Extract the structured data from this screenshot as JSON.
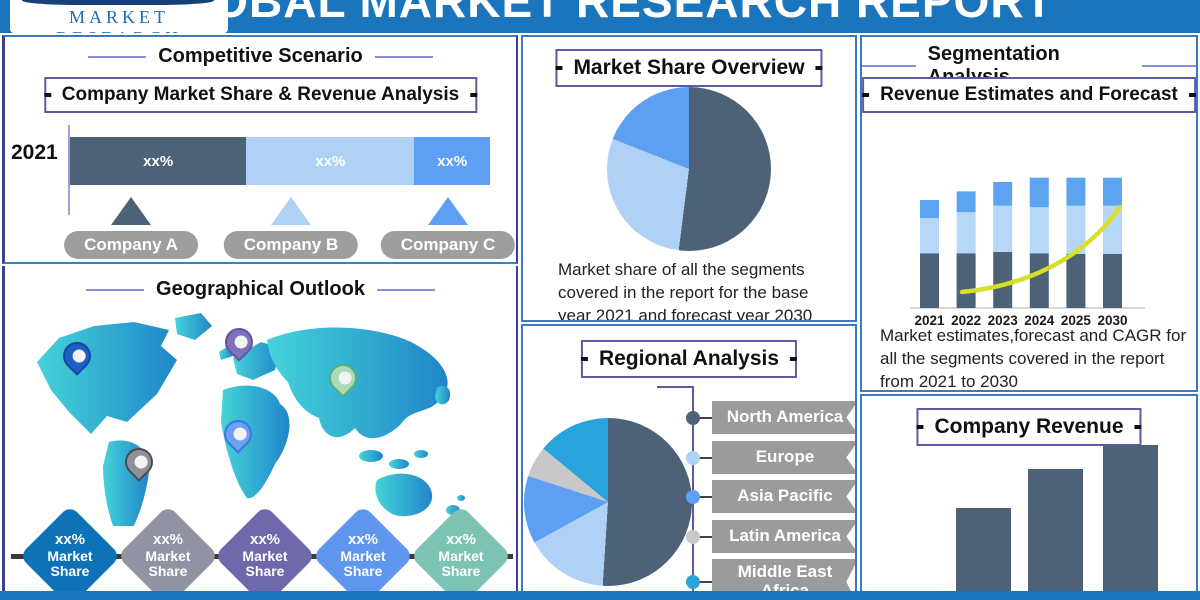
{
  "header": {
    "logo_text": "MARKET RESEARCH",
    "title": "GLOBAL MARKET RESEARCH REPORT"
  },
  "competitive": {
    "title": "Competitive Scenario",
    "subtitle": "Company Market Share & Revenue Analysis",
    "year_label": "2021",
    "companies": [
      {
        "label": "Company A",
        "color": "#4d6277"
      },
      {
        "label": "Company B",
        "color": "#aed1f5"
      },
      {
        "label": "Company C",
        "color": "#5d9ff3"
      }
    ]
  },
  "geographical": {
    "title": "Geographical Outlook",
    "badges": [
      {
        "pct": "xx%",
        "label": "Market Share",
        "color": "#0d72b8"
      },
      {
        "pct": "xx%",
        "label": "Market Share",
        "color": "#8f93a2"
      },
      {
        "pct": "xx%",
        "label": "Market Share",
        "color": "#6f68ab"
      },
      {
        "pct": "xx%",
        "label": "Market Share",
        "color": "#5f96ee"
      },
      {
        "pct": "xx%",
        "label": "Market Share",
        "color": "#7cc3b4"
      }
    ],
    "pins": [
      {
        "name": "north-america",
        "fill": "#1d5fc4",
        "stroke": "#15459c"
      },
      {
        "name": "europe",
        "fill": "#8071bd",
        "stroke": "#64549f"
      },
      {
        "name": "middle-east-africa",
        "fill": "#6d9ff2",
        "stroke": "#3f78dd"
      },
      {
        "name": "east-asia",
        "fill": "#aadbb9",
        "stroke": "#57ae77"
      },
      {
        "name": "south-america",
        "fill": "#90909b",
        "stroke": "#4c4c57"
      }
    ]
  },
  "market_share_overview": {
    "title": "Market Share Overview",
    "caption": "Market share of all the segments covered in the report for the base year 2021 and forecast year 2030"
  },
  "regional": {
    "title": "Regional Analysis",
    "regions": [
      {
        "label": "North America",
        "color": "#4d6277"
      },
      {
        "label": "Europe",
        "color": "#aed1f5"
      },
      {
        "label": "Asia Pacific",
        "color": "#5d9ff3"
      },
      {
        "label": "Latin America",
        "color": "#c8c8c8"
      },
      {
        "label": "Middle East Africa",
        "color": "#29a3dc"
      }
    ]
  },
  "segmentation": {
    "title": "Segmentation Analysis",
    "subtitle": "Revenue Estimates and Forecast",
    "caption": "Market estimates,forecast and CAGR for all the segments covered in the report from 2021 to 2030"
  },
  "company_revenue": {
    "title": "Company Revenue"
  },
  "chart_data": [
    {
      "type": "bar",
      "panel": "competitive-scenario",
      "orientation": "horizontal-stacked",
      "categories": [
        "2021"
      ],
      "series": [
        {
          "name": "Company A",
          "label": "xx%",
          "share_pct": 42,
          "color": "#4d6277"
        },
        {
          "name": "Company B",
          "label": "xx%",
          "share_pct": 40,
          "color": "#aed1f5"
        },
        {
          "name": "Company C",
          "label": "xx%",
          "share_pct": 18,
          "color": "#5d9ff3"
        }
      ],
      "note": "values masked as xx% in source image"
    },
    {
      "type": "pie",
      "panel": "market-share-overview",
      "start_angle": "12 o'clock, clockwise",
      "slices": [
        {
          "value": 52,
          "color": "#4d6277"
        },
        {
          "value": 29,
          "color": "#aed1f5"
        },
        {
          "value": 19,
          "color": "#5d9ff3"
        }
      ]
    },
    {
      "type": "pie",
      "panel": "regional-analysis",
      "start_angle": "12 o'clock, clockwise",
      "slices": [
        {
          "label": "North America",
          "value": 51,
          "color": "#4d6277"
        },
        {
          "label": "Europe",
          "value": 16,
          "color": "#aed1f5"
        },
        {
          "label": "Asia Pacific",
          "value": 13,
          "color": "#5d9ff3"
        },
        {
          "label": "Latin America",
          "value": 6,
          "color": "#c8c8c8"
        },
        {
          "label": "Middle East Africa",
          "value": 14,
          "color": "#29a3dc"
        }
      ]
    },
    {
      "type": "bar",
      "panel": "segmentation-analysis",
      "orientation": "vertical-stacked",
      "categories": [
        "2021",
        "2022",
        "2023",
        "2024",
        "2025",
        "2030"
      ],
      "series": [
        {
          "name": "segment-bottom",
          "color": "#4d6277",
          "values": [
            76,
            76,
            78,
            76,
            75,
            75
          ]
        },
        {
          "name": "segment-middle",
          "color": "#b7d7f8",
          "values": [
            49,
            57,
            64,
            64,
            67,
            67
          ]
        },
        {
          "name": "segment-top",
          "color": "#5da4f0",
          "values": [
            25,
            29,
            33,
            41,
            39,
            39
          ]
        }
      ],
      "line": {
        "name": "CAGR trend",
        "color": "#d7df26"
      },
      "units": "relative heights; no value axis shown in source"
    },
    {
      "type": "bar",
      "panel": "company-revenue",
      "values": [
        90,
        129,
        153
      ],
      "color": "#4d6277",
      "units": "relative heights; no labels shown in source"
    }
  ]
}
